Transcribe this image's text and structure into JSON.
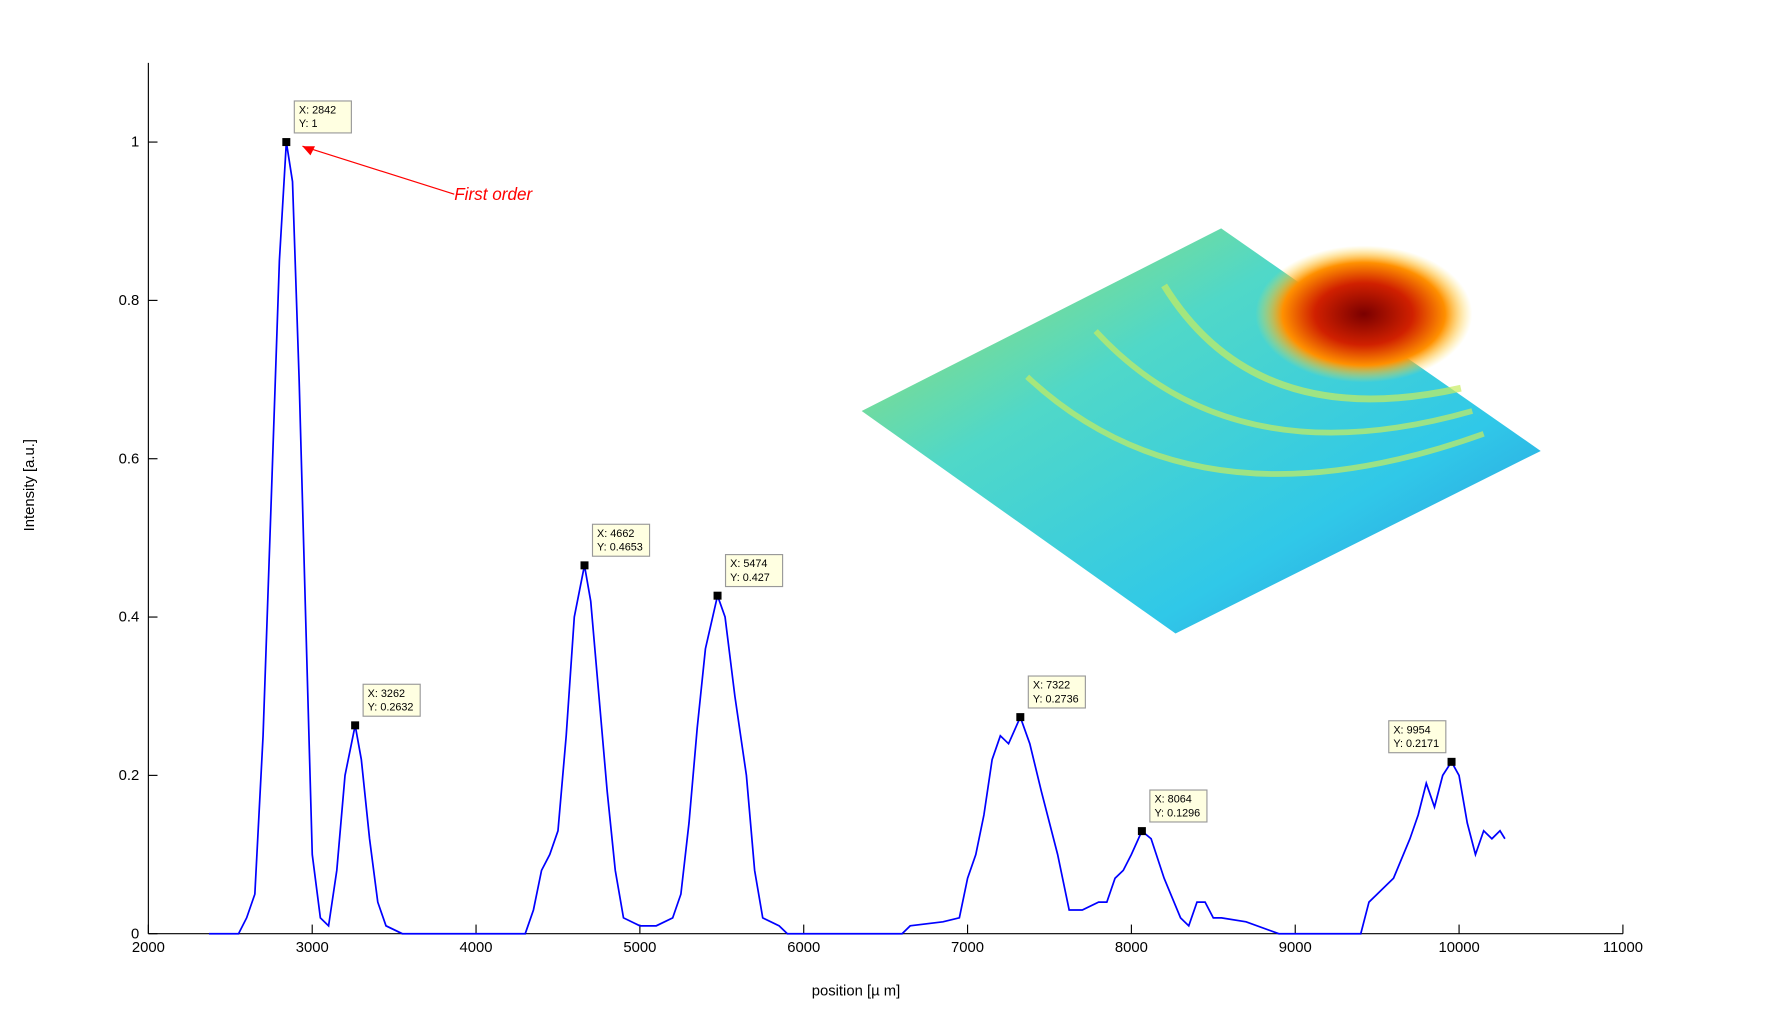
{
  "chart_data": {
    "type": "line",
    "xlabel": "position [µ m]",
    "ylabel": "Intensity [a.u.]",
    "annotation": "First order",
    "color": "#0000ff",
    "xlim": [
      2000,
      11000
    ],
    "xticks": [
      2000,
      3000,
      4000,
      5000,
      6000,
      7000,
      8000,
      9000,
      10000,
      11000
    ],
    "ylim": [
      0,
      1.1
    ],
    "yticks": [
      0,
      0.2,
      0.4,
      0.6,
      0.8,
      1
    ],
    "x": [
      2370,
      2550,
      2600,
      2650,
      2700,
      2750,
      2800,
      2842,
      2880,
      2920,
      2960,
      3000,
      3050,
      3100,
      3150,
      3200,
      3262,
      3300,
      3350,
      3400,
      3450,
      3550,
      4300,
      4350,
      4400,
      4450,
      4500,
      4550,
      4600,
      4662,
      4700,
      4750,
      4800,
      4850,
      4900,
      5000,
      5100,
      5200,
      5250,
      5300,
      5350,
      5400,
      5474,
      5520,
      5580,
      5650,
      5700,
      5750,
      5850,
      5900,
      6600,
      6650,
      6850,
      6950,
      7000,
      7050,
      7100,
      7150,
      7200,
      7250,
      7322,
      7380,
      7450,
      7550,
      7620,
      7700,
      7800,
      7850,
      7900,
      7950,
      8000,
      8064,
      8120,
      8200,
      8300,
      8350,
      8400,
      8450,
      8500,
      8550,
      8700,
      8900,
      9400,
      9450,
      9500,
      9600,
      9700,
      9750,
      9800,
      9850,
      9900,
      9954,
      10000,
      10050,
      10100,
      10150,
      10200,
      10250,
      10280
    ],
    "values": [
      0,
      0,
      0.02,
      0.05,
      0.25,
      0.55,
      0.85,
      1,
      0.95,
      0.7,
      0.4,
      0.1,
      0.02,
      0.01,
      0.08,
      0.2,
      0.2632,
      0.22,
      0.12,
      0.04,
      0.01,
      0,
      0,
      0.03,
      0.08,
      0.1,
      0.13,
      0.25,
      0.4,
      0.4653,
      0.42,
      0.3,
      0.18,
      0.08,
      0.02,
      0.01,
      0.01,
      0.02,
      0.05,
      0.14,
      0.26,
      0.36,
      0.427,
      0.4,
      0.3,
      0.2,
      0.08,
      0.02,
      0.01,
      0,
      0,
      0.01,
      0.015,
      0.02,
      0.07,
      0.1,
      0.15,
      0.22,
      0.25,
      0.24,
      0.2736,
      0.24,
      0.18,
      0.1,
      0.03,
      0.03,
      0.04,
      0.04,
      0.07,
      0.08,
      0.1,
      0.1296,
      0.12,
      0.07,
      0.02,
      0.01,
      0.04,
      0.04,
      0.02,
      0.02,
      0.015,
      0,
      0,
      0.04,
      0.05,
      0.07,
      0.12,
      0.15,
      0.19,
      0.16,
      0.2,
      0.2171,
      0.2,
      0.14,
      0.1,
      0.13,
      0.12,
      0.13,
      0.12
    ],
    "datatips": [
      {
        "x": 2842,
        "y": 1,
        "label_x": "X: 2842",
        "label_y": "Y: 1"
      },
      {
        "x": 3262,
        "y": 0.2632,
        "label_x": "X: 3262",
        "label_y": "Y: 0.2632"
      },
      {
        "x": 4662,
        "y": 0.4653,
        "label_x": "X: 4662",
        "label_y": "Y: 0.4653"
      },
      {
        "x": 5474,
        "y": 0.427,
        "label_x": "X: 5474",
        "label_y": "Y: 0.427"
      },
      {
        "x": 7322,
        "y": 0.2736,
        "label_x": "X: 7322",
        "label_y": "Y: 0.2736"
      },
      {
        "x": 8064,
        "y": 0.1296,
        "label_x": "X: 8064",
        "label_y": "Y: 0.1296"
      },
      {
        "x": 9954,
        "y": 0.2171,
        "label_x": "X: 9954",
        "label_y": "Y: 0.2171"
      }
    ]
  }
}
